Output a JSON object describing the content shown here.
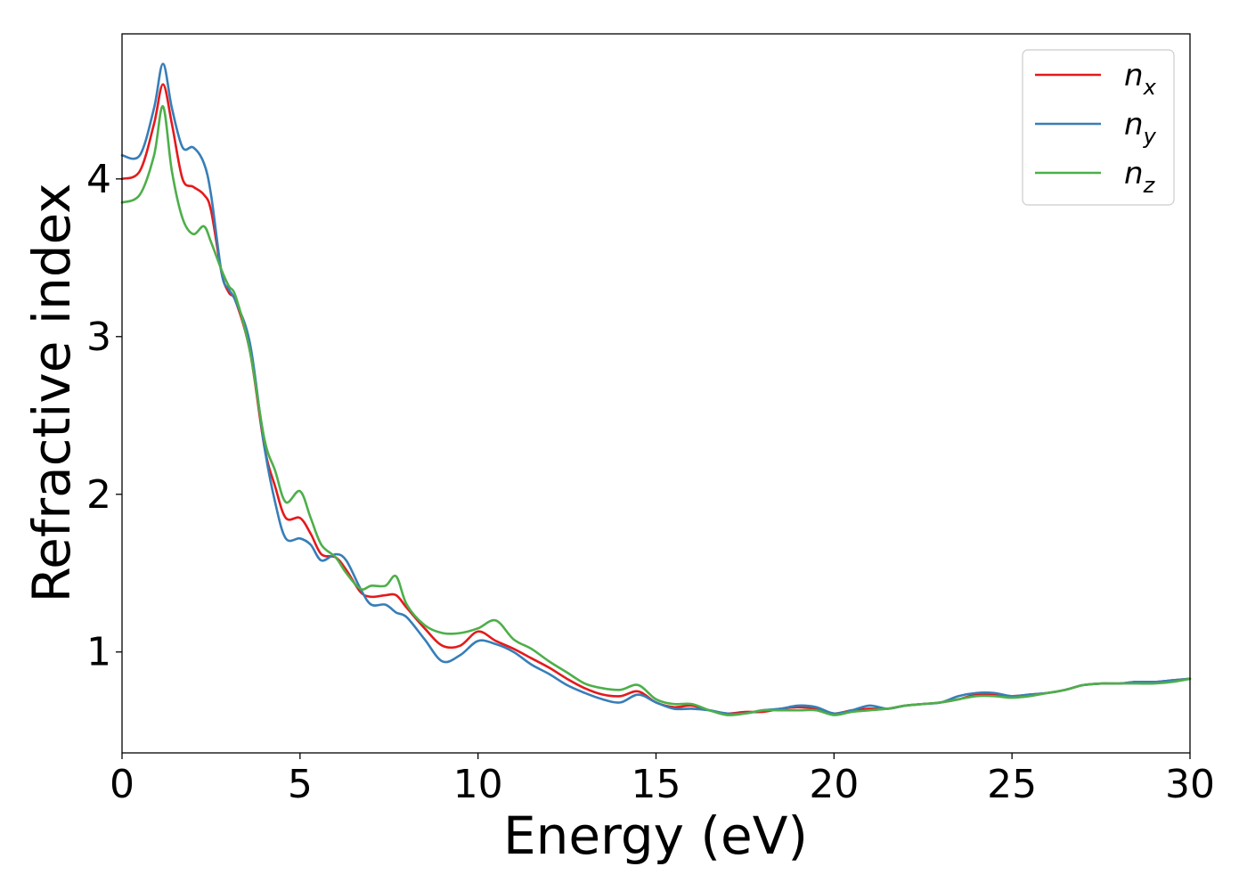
{
  "chart_data": {
    "type": "line",
    "xlabel": "Energy (eV)",
    "ylabel": "Refractive index",
    "xlim": [
      0,
      30
    ],
    "ylim": [
      0.36,
      4.92
    ],
    "xticks": [
      0,
      5,
      10,
      15,
      20,
      25,
      30
    ],
    "xtick_labels": [
      "0",
      "5",
      "10",
      "15",
      "20",
      "25",
      "30"
    ],
    "yticks": [
      1,
      2,
      3,
      4
    ],
    "ytick_labels": [
      "1",
      "2",
      "3",
      "4"
    ],
    "grid": false,
    "legend_position": "top-right",
    "series": [
      {
        "name": "n_x",
        "label_base": "n",
        "label_sub": "x",
        "color": "#e41a1c",
        "x": [
          0,
          0.5,
          0.9,
          1.15,
          1.4,
          1.7,
          2.0,
          2.3,
          2.5,
          2.8,
          3.0,
          3.2,
          3.6,
          4.0,
          4.3,
          4.6,
          5.0,
          5.3,
          5.6,
          6.0,
          6.3,
          6.7,
          7.0,
          7.4,
          7.7,
          8.0,
          8.5,
          9.0,
          9.5,
          10.0,
          10.5,
          11.0,
          11.5,
          12.0,
          12.5,
          13.0,
          13.5,
          14.0,
          14.5,
          15.0,
          15.5,
          16.0,
          16.5,
          17.0,
          17.5,
          18.0,
          18.5,
          19.0,
          19.5,
          20.0,
          20.5,
          21.0,
          21.5,
          22.0,
          22.5,
          23.0,
          23.5,
          24.0,
          24.5,
          25.0,
          25.5,
          26.0,
          26.5,
          27.0,
          27.5,
          28.0,
          28.5,
          29.0,
          29.5,
          30.0
        ],
        "y": [
          4.0,
          4.05,
          4.35,
          4.6,
          4.35,
          4.0,
          3.95,
          3.9,
          3.8,
          3.4,
          3.28,
          3.22,
          2.9,
          2.3,
          2.05,
          1.85,
          1.85,
          1.75,
          1.62,
          1.6,
          1.52,
          1.38,
          1.35,
          1.36,
          1.36,
          1.28,
          1.15,
          1.04,
          1.04,
          1.13,
          1.07,
          1.02,
          0.96,
          0.9,
          0.83,
          0.77,
          0.73,
          0.72,
          0.75,
          0.68,
          0.65,
          0.66,
          0.63,
          0.61,
          0.62,
          0.62,
          0.64,
          0.65,
          0.64,
          0.61,
          0.63,
          0.64,
          0.64,
          0.66,
          0.67,
          0.68,
          0.7,
          0.73,
          0.73,
          0.72,
          0.73,
          0.74,
          0.76,
          0.79,
          0.8,
          0.8,
          0.81,
          0.81,
          0.82,
          0.83
        ]
      },
      {
        "name": "n_y",
        "label_base": "n",
        "label_sub": "y",
        "color": "#377eb8",
        "x": [
          0,
          0.5,
          0.9,
          1.15,
          1.4,
          1.7,
          2.0,
          2.3,
          2.5,
          2.8,
          3.0,
          3.2,
          3.6,
          4.0,
          4.3,
          4.6,
          5.0,
          5.3,
          5.6,
          6.0,
          6.3,
          6.7,
          7.0,
          7.4,
          7.7,
          8.0,
          8.5,
          9.0,
          9.5,
          10.0,
          10.5,
          11.0,
          11.5,
          12.0,
          12.5,
          13.0,
          13.5,
          14.0,
          14.5,
          15.0,
          15.5,
          16.0,
          16.5,
          17.0,
          17.5,
          18.0,
          18.5,
          19.0,
          19.5,
          20.0,
          20.5,
          21.0,
          21.5,
          22.0,
          22.5,
          23.0,
          23.5,
          24.0,
          24.5,
          25.0,
          25.5,
          26.0,
          26.5,
          27.0,
          27.5,
          28.0,
          28.5,
          29.0,
          29.5,
          30.0
        ],
        "y": [
          4.15,
          4.15,
          4.45,
          4.73,
          4.45,
          4.2,
          4.2,
          4.1,
          3.9,
          3.4,
          3.3,
          3.22,
          2.95,
          2.3,
          1.95,
          1.72,
          1.72,
          1.68,
          1.58,
          1.62,
          1.58,
          1.4,
          1.3,
          1.3,
          1.25,
          1.22,
          1.08,
          0.94,
          0.98,
          1.07,
          1.05,
          1.0,
          0.92,
          0.86,
          0.79,
          0.74,
          0.7,
          0.68,
          0.73,
          0.68,
          0.64,
          0.64,
          0.63,
          0.61,
          0.61,
          0.63,
          0.64,
          0.66,
          0.65,
          0.61,
          0.63,
          0.66,
          0.64,
          0.66,
          0.67,
          0.68,
          0.72,
          0.74,
          0.74,
          0.72,
          0.73,
          0.74,
          0.76,
          0.79,
          0.8,
          0.8,
          0.81,
          0.81,
          0.82,
          0.83
        ]
      },
      {
        "name": "n_z",
        "label_base": "n",
        "label_sub": "z",
        "color": "#4daf4a",
        "x": [
          0,
          0.5,
          0.9,
          1.15,
          1.4,
          1.7,
          2.0,
          2.3,
          2.5,
          2.8,
          3.0,
          3.2,
          3.6,
          4.0,
          4.3,
          4.6,
          5.0,
          5.3,
          5.6,
          6.0,
          6.3,
          6.7,
          7.0,
          7.4,
          7.7,
          8.0,
          8.5,
          9.0,
          9.5,
          10.0,
          10.5,
          11.0,
          11.5,
          12.0,
          12.5,
          13.0,
          13.5,
          14.0,
          14.5,
          15.0,
          15.5,
          16.0,
          16.5,
          17.0,
          17.5,
          18.0,
          18.5,
          19.0,
          19.5,
          20.0,
          20.5,
          21.0,
          21.5,
          22.0,
          22.5,
          23.0,
          23.5,
          24.0,
          24.5,
          25.0,
          25.5,
          26.0,
          26.5,
          27.0,
          27.5,
          28.0,
          28.5,
          29.0,
          29.5,
          30.0
        ],
        "y": [
          3.85,
          3.9,
          4.15,
          4.46,
          4.05,
          3.75,
          3.65,
          3.7,
          3.6,
          3.42,
          3.32,
          3.25,
          2.9,
          2.35,
          2.15,
          1.95,
          2.02,
          1.85,
          1.68,
          1.6,
          1.5,
          1.4,
          1.42,
          1.42,
          1.48,
          1.3,
          1.17,
          1.12,
          1.12,
          1.15,
          1.2,
          1.08,
          1.02,
          0.94,
          0.87,
          0.8,
          0.77,
          0.76,
          0.79,
          0.7,
          0.67,
          0.67,
          0.63,
          0.6,
          0.61,
          0.63,
          0.63,
          0.63,
          0.63,
          0.6,
          0.62,
          0.63,
          0.64,
          0.66,
          0.67,
          0.68,
          0.7,
          0.72,
          0.72,
          0.71,
          0.72,
          0.74,
          0.76,
          0.79,
          0.8,
          0.8,
          0.8,
          0.8,
          0.81,
          0.83
        ]
      }
    ]
  }
}
